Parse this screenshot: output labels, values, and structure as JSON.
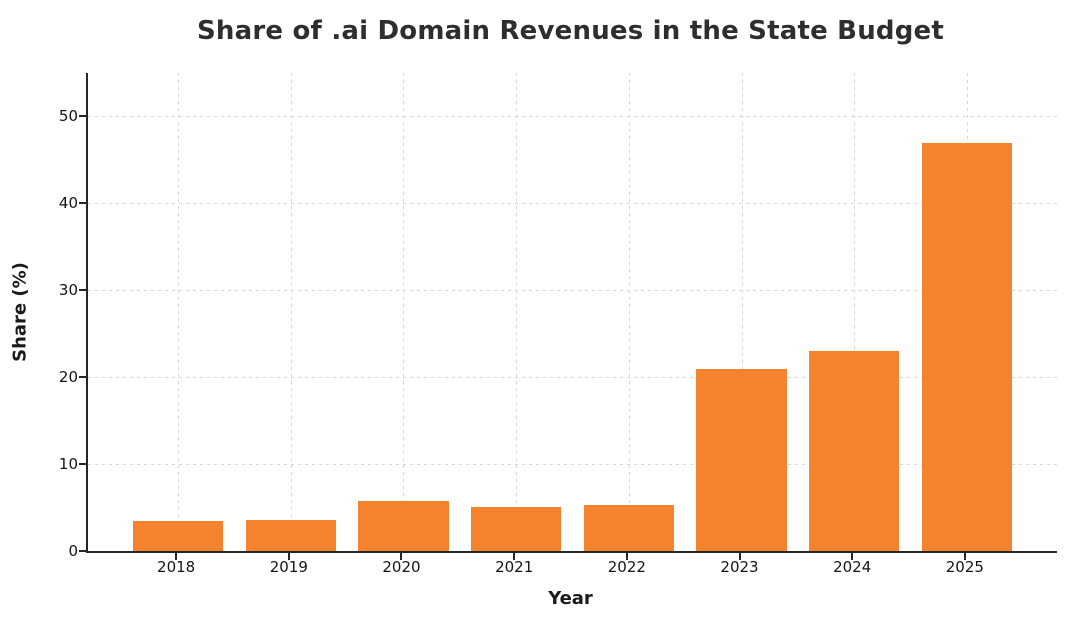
{
  "page": {
    "background_color": "#ffffff"
  },
  "chart_data": {
    "type": "bar",
    "title": "Share of .ai Domain Revenues in the State Budget",
    "xlabel": "Year",
    "ylabel": "Share (%)",
    "categories": [
      "2018",
      "2019",
      "2020",
      "2021",
      "2022",
      "2023",
      "2024",
      "2025"
    ],
    "values": [
      3.4,
      3.6,
      5.7,
      5.1,
      5.3,
      21,
      23,
      47
    ],
    "yticks": [
      0,
      10,
      20,
      30,
      40,
      50
    ],
    "ylim": [
      0,
      55
    ],
    "grid": "both, dashed, behind bars",
    "legend": "none",
    "bar_color": "#F5822D",
    "title_color": "#2e2e2e",
    "axis_color": "#262626",
    "grid_color": "#d6d6d6",
    "tick_label_color": "#151515"
  }
}
